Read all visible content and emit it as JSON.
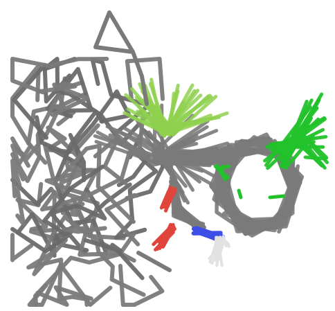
{
  "figure": {
    "kind": "molecular-conformer-ensemble",
    "background": "#ffffff",
    "palette": {
      "carbon": "#7a7a7a",
      "carbon_dark": "#6a6a6a",
      "light_green": "#8fd14f",
      "bright_green": "#22c22b",
      "oxygen": "#e0443b",
      "nitrogen": "#3d4fe6",
      "hydrogen": "#e2e2e2"
    },
    "features": [
      "gray-carbon-backbone-tangle",
      "light-green-substituent-fan",
      "bright-green-substituent-fan",
      "red-oxygen-atoms",
      "blue-nitrogen-atoms",
      "white-hydrogen-atoms",
      "triangle-loop"
    ]
  }
}
